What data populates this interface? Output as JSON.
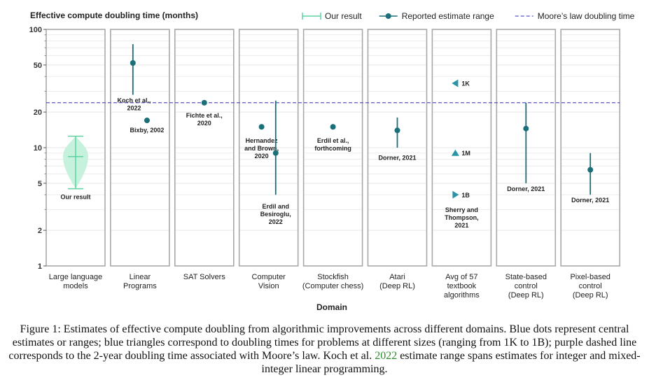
{
  "chart_data": {
    "type": "scatter",
    "title": "Effective compute doubling time (months)",
    "xlabel": "Domain",
    "ylabel": "Effective compute doubling time (months)",
    "yscale": "log",
    "ylim": [
      1,
      100
    ],
    "yticks": [
      {
        "value": 1,
        "label": "1"
      },
      {
        "value": 2,
        "label": "2"
      },
      {
        "value": 5,
        "label": "5"
      },
      {
        "value": 10,
        "label": "10"
      },
      {
        "value": 20,
        "label": "20"
      },
      {
        "value": 50,
        "label": "50"
      },
      {
        "value": 100,
        "label": "100"
      }
    ],
    "minor_ticks": [
      3,
      4,
      6,
      7,
      8,
      9,
      30,
      40,
      60,
      70,
      80,
      90
    ],
    "legend": {
      "position": "top-right",
      "items": [
        {
          "label": "Our result",
          "kind": "violin"
        },
        {
          "label": "Reported estimate range",
          "kind": "point-range"
        },
        {
          "label": "Moore’s law doubling time",
          "kind": "dashed-line"
        }
      ]
    },
    "moores_law_months": 24,
    "colors": {
      "point": "#1b6f78",
      "triangle": "#2a93a6",
      "violin_fill": "#c6f1dc",
      "violin_edge": "#5ed3a0",
      "moore": "#5b56c4",
      "panel_border": "#a8a8a8",
      "grid": "#e6e6e6"
    },
    "categories": [
      {
        "label": [
          "Large language",
          "models"
        ],
        "violin": {
          "low": 4.5,
          "high": 12.5,
          "median": 8.4,
          "annotation": [
            "Our result"
          ]
        }
      },
      {
        "label": [
          "Linear",
          "Programs"
        ],
        "points": [
          {
            "value": 52,
            "low": 28,
            "high": 75,
            "offset": -0.3,
            "annotation": [
              "Koch et al.,",
              "2022"
            ],
            "ann_value": 24,
            "ann_offset": -0.25
          },
          {
            "value": 17,
            "offset": 0.3,
            "annotation": [
              "Bixby, 2002"
            ],
            "ann_value": 13.5,
            "ann_offset": 0.3
          }
        ]
      },
      {
        "label": [
          "SAT Solvers"
        ],
        "points": [
          {
            "value": 24,
            "offset": 0,
            "annotation": [
              "Fichte et al.,",
              "2020"
            ],
            "ann_value": 18,
            "ann_offset": 0
          }
        ]
      },
      {
        "label": [
          "Computer",
          "Vision"
        ],
        "points": [
          {
            "value": 15,
            "offset": -0.3,
            "annotation": [
              "Hernandez",
              "and Brown,",
              "2020"
            ],
            "ann_value": 11,
            "ann_offset": -0.3
          },
          {
            "value": 9,
            "low": 4,
            "high": 25,
            "offset": 0.3,
            "annotation": [
              "Erdil and",
              "Besiroglu,",
              "2022"
            ],
            "ann_value": 3.05,
            "ann_offset": 0.3
          }
        ]
      },
      {
        "label": [
          "Stockfish",
          "(Computer chess)"
        ],
        "points": [
          {
            "value": 15,
            "offset": 0,
            "annotation": [
              "Erdil et al.,",
              "forthcoming"
            ],
            "ann_value": 11,
            "ann_offset": 0
          }
        ]
      },
      {
        "label": [
          "Atari",
          "(Deep RL)"
        ],
        "points": [
          {
            "value": 14,
            "low": 10,
            "high": 18,
            "offset": 0,
            "annotation": [
              "Dorner, 2021"
            ],
            "ann_value": 7.9,
            "ann_offset": 0
          }
        ]
      },
      {
        "label": [
          "Avg of 57",
          "textbook",
          "algorithms"
        ],
        "triangles": [
          {
            "value": 35,
            "label": "1K",
            "direction": "left"
          },
          {
            "value": 9,
            "label": "1M",
            "direction": "up"
          },
          {
            "value": 4,
            "label": "1B",
            "direction": "right"
          }
        ],
        "annotation": [
          "Sherry and",
          "Thompson,",
          "2021"
        ],
        "ann_value": 2.85
      },
      {
        "label": [
          "State-based",
          "control",
          "(Deep RL)"
        ],
        "points": [
          {
            "value": 14.5,
            "low": 5,
            "high": 24,
            "offset": 0,
            "annotation": [
              "Dorner, 2021"
            ],
            "ann_value": 4.3,
            "ann_offset": 0
          }
        ]
      },
      {
        "label": [
          "Pixel-based",
          "control",
          "(Deep RL)"
        ],
        "points": [
          {
            "value": 6.5,
            "low": 4,
            "high": 9,
            "offset": 0,
            "annotation": [
              "Dorner, 2021"
            ],
            "ann_value": 3.45,
            "ann_offset": 0
          }
        ]
      }
    ]
  },
  "caption": {
    "prefix": "Figure 1: Estimates of effective compute doubling from algorithmic improvements across different domains. Blue dots represent central estimates or ranges; blue triangles correspond to doubling times for problems at different sizes (ranging from 1K to 1B); purple dashed line corresponds to the 2-year doubling time associated with Moore’s law. Koch et al. ",
    "cite": "2022",
    "suffix": " estimate range spans estimates for integer and mixed-integer linear programming."
  }
}
